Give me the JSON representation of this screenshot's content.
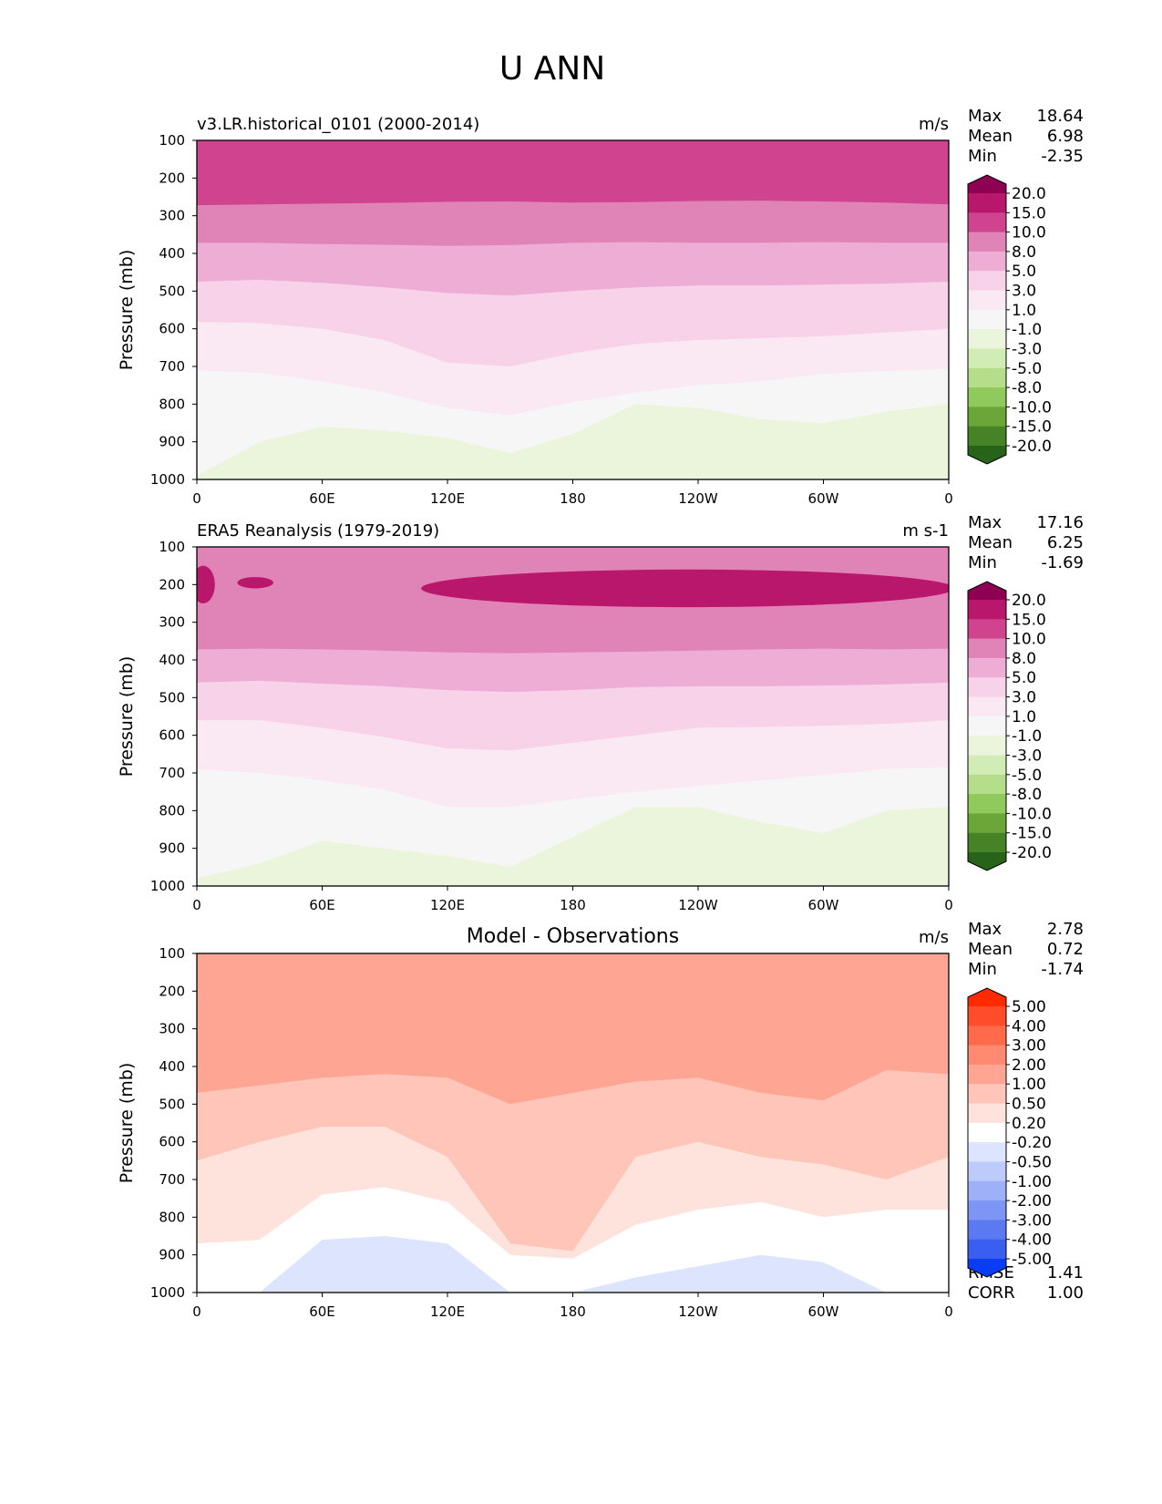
{
  "figure_title": "U ANN",
  "stat_labels": {
    "max": "Max",
    "mean": "Mean",
    "min": "Min",
    "rmse": "RMSE",
    "corr": "CORR"
  },
  "chart_data": [
    {
      "type": "heatmap",
      "title_left": "v3.LR.historical_0101 (2000-2014)",
      "title_center": "",
      "units": "m/s",
      "ylabel": "Pressure (mb)",
      "xlabel": "",
      "xticks": [
        "0",
        "60E",
        "120E",
        "180",
        "120W",
        "60W",
        "0"
      ],
      "xlim": [
        0,
        360
      ],
      "yticks": [
        "100",
        "200",
        "300",
        "400",
        "500",
        "600",
        "700",
        "800",
        "900",
        "1000"
      ],
      "ylim": [
        100,
        1000
      ],
      "stats": {
        "max": "18.64",
        "mean": "6.98",
        "min": "-2.35"
      },
      "colorbar": {
        "levels": [
          "20.0",
          "15.0",
          "10.0",
          "8.0",
          "5.0",
          "3.0",
          "1.0",
          "-1.0",
          "-3.0",
          "-5.0",
          "-8.0",
          "-10.0",
          "-15.0",
          "-20.0"
        ],
        "colors": [
          "#8e0152",
          "#b9176c",
          "#d0448f",
          "#e083b7",
          "#eeadd5",
          "#f8d2e8",
          "#fae9f3",
          "#f6f6f6",
          "#eaf5dc",
          "#d2ecb5",
          "#b4de89",
          "#90c95c",
          "#6aa738",
          "#468326",
          "#276419"
        ]
      },
      "contours": [
        {
          "level": "10.0",
          "p": [
            272,
            270,
            268,
            266,
            263,
            262,
            265,
            264,
            261,
            260,
            262,
            265,
            270
          ]
        },
        {
          "level": "8.0",
          "p": [
            372,
            372,
            375,
            377,
            380,
            378,
            372,
            370,
            372,
            372,
            370,
            372,
            372
          ]
        },
        {
          "level": "5.0",
          "p": [
            475,
            470,
            478,
            490,
            505,
            512,
            500,
            490,
            485,
            485,
            483,
            480,
            475
          ]
        },
        {
          "level": "3.0",
          "p": [
            582,
            585,
            600,
            630,
            690,
            700,
            665,
            640,
            630,
            625,
            620,
            610,
            600
          ]
        },
        {
          "level": "1.0",
          "p": [
            710,
            718,
            740,
            770,
            810,
            830,
            795,
            770,
            750,
            740,
            720,
            712,
            708
          ]
        },
        {
          "level": "-1.0",
          "p": [
            990,
            900,
            860,
            870,
            890,
            930,
            880,
            800,
            810,
            840,
            850,
            820,
            800
          ]
        }
      ]
    },
    {
      "type": "heatmap",
      "title_left": "ERA5 Reanalysis (1979-2019)",
      "title_center": "",
      "units": "m s-1",
      "ylabel": "Pressure (mb)",
      "xlabel": "",
      "xticks": [
        "0",
        "60E",
        "120E",
        "180",
        "120W",
        "60W",
        "0"
      ],
      "xlim": [
        0,
        360
      ],
      "yticks": [
        "100",
        "200",
        "300",
        "400",
        "500",
        "600",
        "700",
        "800",
        "900",
        "1000"
      ],
      "ylim": [
        100,
        1000
      ],
      "stats": {
        "max": "17.16",
        "mean": "6.25",
        "min": "-1.69"
      },
      "colorbar": {
        "levels": [
          "20.0",
          "15.0",
          "10.0",
          "8.0",
          "5.0",
          "3.0",
          "1.0",
          "-1.0",
          "-3.0",
          "-5.0",
          "-8.0",
          "-10.0",
          "-15.0",
          "-20.0"
        ],
        "colors": [
          "#8e0152",
          "#b9176c",
          "#d0448f",
          "#e083b7",
          "#eeadd5",
          "#f8d2e8",
          "#fae9f3",
          "#f6f6f6",
          "#eaf5dc",
          "#d2ecb5",
          "#b4de89",
          "#90c95c",
          "#6aa738",
          "#468326",
          "#276419"
        ]
      },
      "contours": [
        {
          "level": "8.0",
          "p": [
            372,
            370,
            372,
            375,
            380,
            382,
            380,
            378,
            375,
            372,
            370,
            372,
            370
          ]
        },
        {
          "level": "5.0",
          "p": [
            460,
            455,
            463,
            470,
            480,
            485,
            480,
            472,
            470,
            470,
            468,
            465,
            460
          ]
        },
        {
          "level": "3.0",
          "p": [
            560,
            560,
            580,
            605,
            635,
            640,
            620,
            600,
            580,
            578,
            575,
            570,
            560
          ]
        },
        {
          "level": "1.0",
          "p": [
            690,
            700,
            720,
            745,
            790,
            790,
            770,
            750,
            735,
            720,
            705,
            690,
            685
          ]
        },
        {
          "level": "-1.0",
          "p": [
            980,
            940,
            880,
            900,
            920,
            950,
            870,
            790,
            790,
            830,
            860,
            800,
            790
          ]
        }
      ],
      "jet_cores": [
        {
          "level": "15.0",
          "lon": [
            110,
            360
          ],
          "p": [
            160,
            260
          ]
        },
        {
          "level": "15.0",
          "lon": [
            0,
            6
          ],
          "p": [
            150,
            250
          ]
        },
        {
          "level": "15.0",
          "lon": [
            22,
            34
          ],
          "p": [
            180,
            210
          ]
        }
      ]
    },
    {
      "type": "heatmap",
      "title_left": "",
      "title_center": "Model - Observations",
      "units": "m/s",
      "ylabel": "Pressure (mb)",
      "xlabel": "",
      "xticks": [
        "0",
        "60E",
        "120E",
        "180",
        "120W",
        "60W",
        "0"
      ],
      "xlim": [
        0,
        360
      ],
      "yticks": [
        "100",
        "200",
        "300",
        "400",
        "500",
        "600",
        "700",
        "800",
        "900",
        "1000"
      ],
      "ylim": [
        100,
        1000
      ],
      "stats": {
        "max": "2.78",
        "mean": "0.72",
        "min": "-1.74",
        "rmse": "1.41",
        "corr": "1.00"
      },
      "colorbar": {
        "levels": [
          "5.00",
          "4.00",
          "3.00",
          "2.00",
          "1.00",
          "0.50",
          "0.20",
          "-0.20",
          "-0.50",
          "-1.00",
          "-2.00",
          "-3.00",
          "-4.00",
          "-5.00"
        ],
        "colors": [
          "#ff2a00",
          "#ff4d2a",
          "#ff6a4a",
          "#ff8a70",
          "#fea593",
          "#fec5b8",
          "#fee2dc",
          "#ffffff",
          "#dde4fd",
          "#bdcbfb",
          "#9db0f8",
          "#7d95f5",
          "#5b7af2",
          "#3a5ff0",
          "#0a3cf5"
        ]
      },
      "contours": [
        {
          "level": "1.00",
          "p": [
            470,
            450,
            430,
            420,
            430,
            500,
            470,
            440,
            430,
            470,
            490,
            410,
            420
          ]
        },
        {
          "level": "0.50",
          "p": [
            650,
            600,
            560,
            560,
            640,
            870,
            890,
            640,
            600,
            640,
            660,
            700,
            640
          ]
        },
        {
          "level": "0.20",
          "p": [
            870,
            860,
            740,
            720,
            760,
            900,
            910,
            820,
            780,
            760,
            800,
            780,
            780
          ]
        },
        {
          "level": "-0.20",
          "p": [
            1000,
            1000,
            860,
            850,
            870,
            1000,
            1000,
            960,
            930,
            900,
            920,
            1000,
            1000
          ]
        }
      ]
    }
  ]
}
